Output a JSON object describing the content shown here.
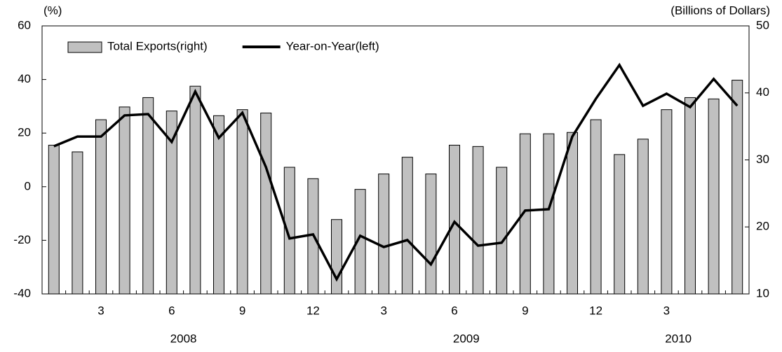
{
  "chart_data": {
    "type": "bar",
    "y_label": "(%)",
    "y2_label": "(Billions of Dollars)",
    "categories": [
      null,
      null,
      "3",
      null,
      null,
      "6",
      null,
      null,
      "9",
      null,
      null,
      "12",
      null,
      null,
      "3",
      null,
      null,
      "6",
      null,
      null,
      "9",
      null,
      null,
      "12",
      null,
      null,
      "3",
      null,
      null,
      null
    ],
    "x_groups": [
      {
        "label": "2008",
        "count": 12
      },
      {
        "label": "2009",
        "count": 12
      },
      {
        "label": "2010",
        "count": 6
      }
    ],
    "series": [
      {
        "name": "Total Exports(right)",
        "type": "bar",
        "axis": "y2",
        "color": "#c0c0c0",
        "values": [
          32.2,
          31.2,
          36.0,
          37.9,
          39.3,
          37.3,
          41.0,
          36.6,
          37.5,
          37.0,
          28.9,
          27.2,
          21.1,
          25.6,
          27.9,
          30.4,
          27.9,
          32.2,
          32.0,
          28.9,
          33.9,
          33.9,
          34.1,
          36.0,
          30.8,
          33.1,
          37.5,
          39.3,
          39.1,
          41.9
        ]
      },
      {
        "name": "Year-on-Year(left)",
        "type": "line",
        "color": "#000000",
        "values": [
          15.1,
          18.7,
          18.7,
          26.6,
          27.1,
          16.7,
          35.5,
          18.2,
          27.6,
          7.3,
          -19.3,
          -17.8,
          -34.5,
          -18.3,
          -22.5,
          -19.9,
          -29.0,
          -13.1,
          -22.0,
          -20.9,
          -8.9,
          -8.4,
          18.7,
          32.8,
          45.4,
          30.2,
          34.7,
          29.7,
          40.2,
          30.2
        ]
      }
    ],
    "ylim": [
      -40,
      60
    ],
    "yticks": [
      -40,
      -20,
      0,
      20,
      40,
      60
    ],
    "y2lim": [
      10,
      50
    ],
    "y2ticks": [
      10,
      20,
      30,
      40,
      50
    ],
    "legend": "top-left"
  }
}
